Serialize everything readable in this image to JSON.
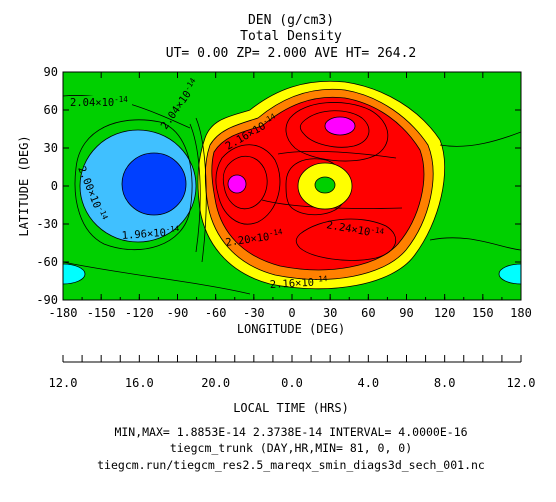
{
  "header": {
    "title": "DEN (g/cm3)",
    "subtitle": "Total Density",
    "params": "UT= 0.00 ZP=  2.000 AVE HT= 264.2"
  },
  "axes": {
    "xlabel": "LONGITUDE (DEG)",
    "ylabel": "LATITUDE (DEG)",
    "xticks": [
      "-180",
      "-150",
      "-120",
      "-90",
      "-60",
      "-30",
      "0",
      "30",
      "60",
      "90",
      "120",
      "150",
      "180"
    ],
    "yticks": [
      "90",
      "60",
      "30",
      "0",
      "-30",
      "-60",
      "-90"
    ],
    "lt_label": "LOCAL TIME (HRS)",
    "lt_ticks": [
      "12.0",
      "16.0",
      "20.0",
      "0.0",
      "4.0",
      "8.0",
      "12.0"
    ]
  },
  "footer": {
    "minmax": "MIN,MAX=  1.8853E-14  2.3738E-14 INTERVAL=  4.0000E-16",
    "model": "tiegcm_trunk (DAY,HR,MIN= 81, 0, 0)",
    "file": "tiegcm.run/tiegcm_res2.5_mareqx_smin_diags3d_sech_001.nc"
  },
  "contour_labels": [
    {
      "mant": "2.04×10",
      "exp": "-14"
    },
    {
      "mant": "2.04×10",
      "exp": "-14"
    },
    {
      "mant": "2.00×10",
      "exp": "-14"
    },
    {
      "mant": "1.96×10",
      "exp": "-14"
    },
    {
      "mant": "2.16×10",
      "exp": "-14"
    },
    {
      "mant": "2.20×10",
      "exp": "-14"
    },
    {
      "mant": "2.24×10",
      "exp": "-14"
    },
    {
      "mant": "2.16×10",
      "exp": "-14"
    }
  ],
  "chart_data": {
    "type": "heatmap",
    "title": "DEN (g/cm3)",
    "subtitle": "Total Density",
    "xlabel": "LONGITUDE (DEG)",
    "ylabel": "LATITUDE (DEG)",
    "xlim": [
      -180,
      180
    ],
    "ylim": [
      -90,
      90
    ],
    "units": "g/cm3",
    "min": 1.8853e-14,
    "max": 2.3738e-14,
    "interval": 4e-16,
    "contour_levels": [
      1.96e-14,
      2e-14,
      2.04e-14,
      2.16e-14,
      2.2e-14,
      2.24e-14
    ],
    "features": [
      {
        "kind": "minimum",
        "lon": -120,
        "lat": 5
      },
      {
        "kind": "maximum",
        "lon": 37,
        "lat": 47
      },
      {
        "kind": "maximum",
        "lon": -40,
        "lat": 2
      },
      {
        "kind": "local-min",
        "lon": 25,
        "lat": 2
      }
    ],
    "colors": {
      "low-cyan": "#00ffff",
      "light-blue": "#40c0ff",
      "blue": "#0040ff",
      "green": "#00d000",
      "yellow": "#ffff00",
      "orange": "#ff8000",
      "red": "#ff0000",
      "magenta": "#ff00ff"
    }
  }
}
